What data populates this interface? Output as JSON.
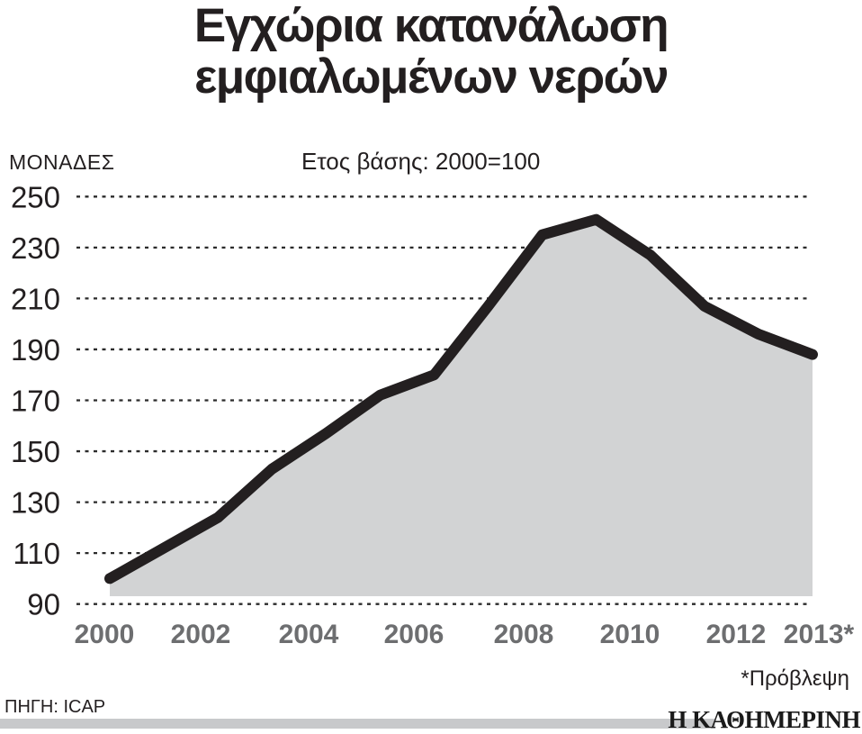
{
  "header": {
    "title_line1": "Εγχώρια κατανάλωση",
    "title_line2": "εμφιαλωμένων νερών",
    "units_label": "ΜΟΝΑΔΕΣ",
    "base_note": "Ετος βάσης: 2000=100"
  },
  "chart_data": {
    "type": "area",
    "title": "Εγχώρια κατανάλωση εμφιαλωμένων νερών",
    "subtitle": "Ετος βάσης: 2000=100",
    "ylabel": "ΜΟΝΑΔΕΣ",
    "xlabel": "",
    "x": [
      2000,
      2001,
      2002,
      2003,
      2004,
      2005,
      2006,
      2007,
      2008,
      2009,
      2010,
      2011,
      2012,
      2013
    ],
    "values": [
      100,
      112,
      124,
      143,
      157,
      172,
      180,
      207,
      235,
      241,
      227,
      207,
      196,
      188
    ],
    "ylim": [
      90,
      250
    ],
    "y_ticks": [
      250,
      230,
      210,
      190,
      170,
      150,
      130,
      110,
      90
    ],
    "x_tick_labels": [
      "2000",
      "2002",
      "2004",
      "2006",
      "2008",
      "2010",
      "2012",
      "2013*"
    ],
    "grid": "dotted-horizontal",
    "legend": "none",
    "colors": {
      "line": "#231f20",
      "area_fill": "#d2d3d4",
      "grid_dots": "#2b2b2b",
      "y_tick_text": "#231f20",
      "x_tick_text": "#6d6e70"
    }
  },
  "footer": {
    "footnote": "*Πρόβλεψη",
    "source": "ΠΗΓΗ: ICAP",
    "logo": "Η ΚΑΘΗΜΕΡΙΝΗ"
  }
}
